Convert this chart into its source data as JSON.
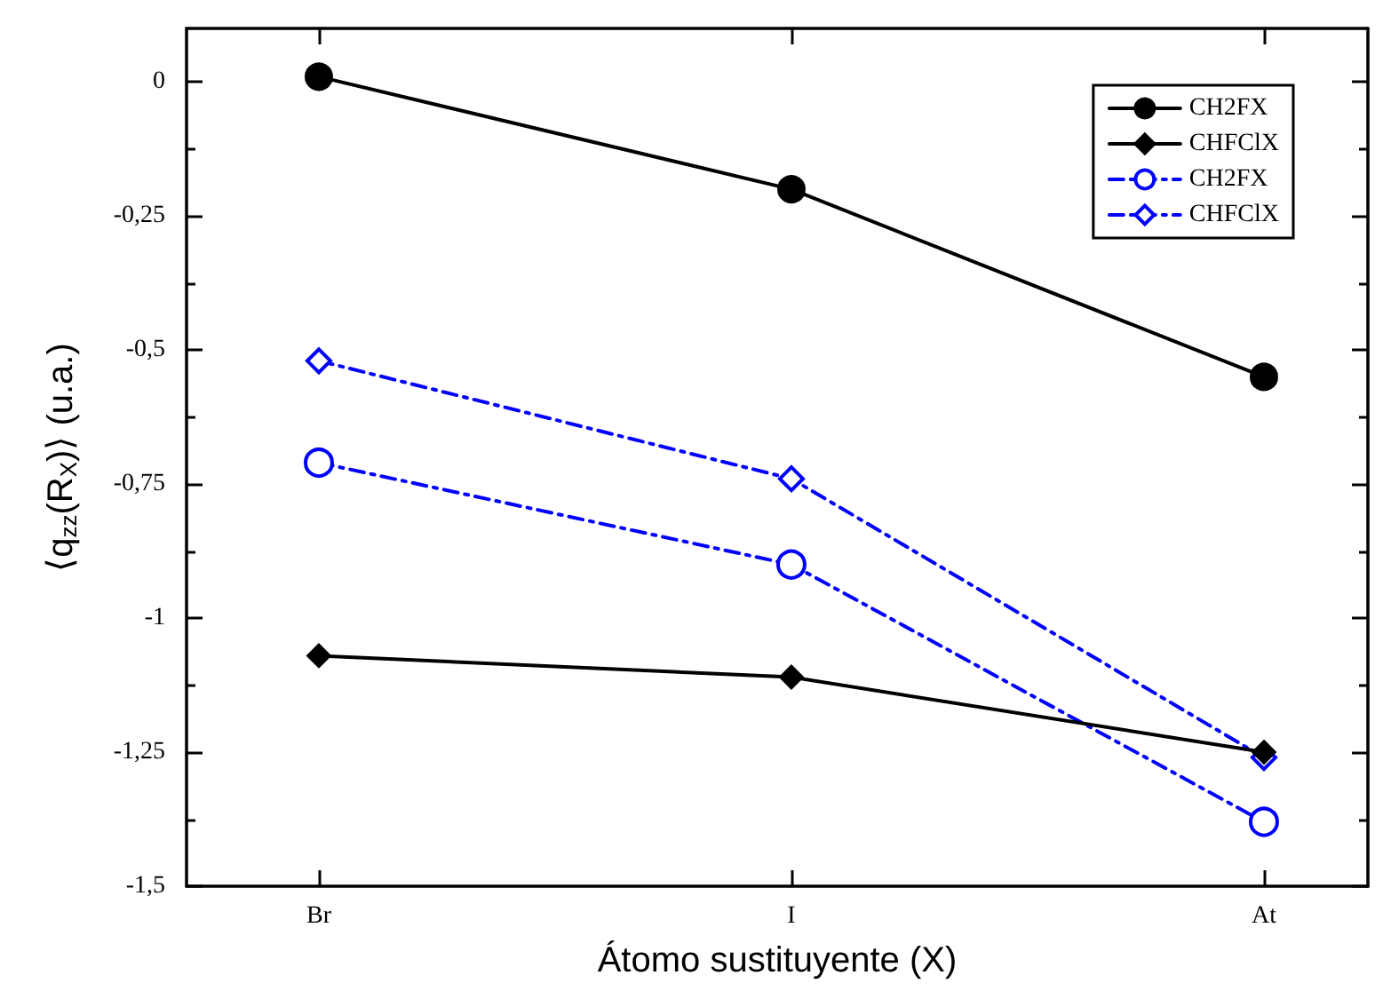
{
  "chart_data": {
    "type": "line",
    "xlabel": "Átomo sustituyente (X)",
    "ylabel": "⟨q$_{zz}$(R$_{X}$)⟩ (u.a.)",
    "categories": [
      "Br",
      "I",
      "At"
    ],
    "series": [
      {
        "name": "CH2FX",
        "color": "#000000",
        "marker": "circle",
        "line_style": "solid",
        "values": [
          0.01,
          -0.2,
          -0.55
        ]
      },
      {
        "name": "CHFClX",
        "color": "#000000",
        "marker": "diamond",
        "line_style": "solid",
        "values": [
          -1.07,
          -1.11,
          -1.25
        ]
      },
      {
        "name": "CH2FX",
        "color": "#0000ff",
        "marker": "circle",
        "line_style": "dashed",
        "values": [
          -0.71,
          -0.9,
          -1.38
        ]
      },
      {
        "name": "CHFClX",
        "color": "#0000ff",
        "marker": "diamond",
        "line_style": "dashed",
        "values": [
          -0.52,
          -0.74,
          -1.26
        ]
      }
    ],
    "ylim": [
      -1.5,
      0.1
    ],
    "yticks": [
      {
        "value": -1.5,
        "label": "-1,5"
      },
      {
        "value": -1.25,
        "label": "-1,25"
      },
      {
        "value": -1,
        "label": "-1"
      },
      {
        "value": -0.75,
        "label": "-0,75"
      },
      {
        "value": -0.5,
        "label": "-0,5"
      },
      {
        "value": -0.25,
        "label": "-0,25"
      },
      {
        "value": 0,
        "label": "0"
      }
    ],
    "legend": "top right",
    "grid": false
  }
}
